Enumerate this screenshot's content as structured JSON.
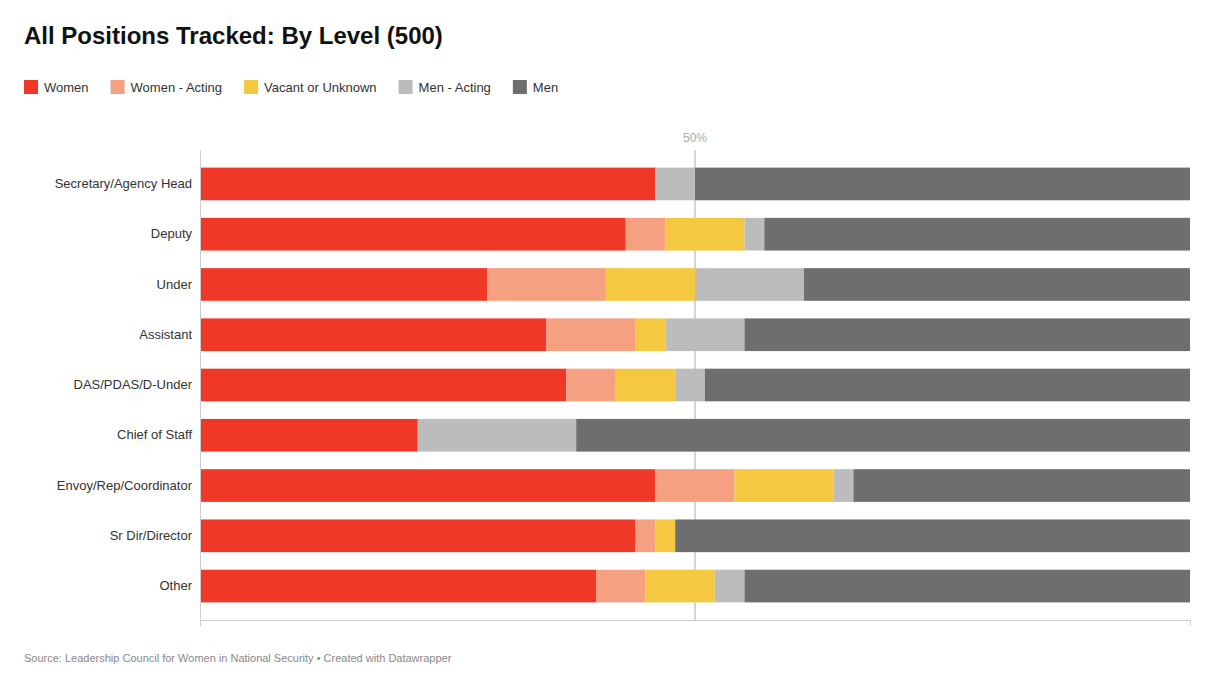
{
  "chart_data": {
    "type": "bar",
    "orientation": "horizontal",
    "stacked": true,
    "title": "All Positions Tracked: By Level (500)",
    "categories": [
      "Secretary/Agency Head",
      "Deputy",
      "Under",
      "Assistant",
      "DAS/PDAS/D-Under",
      "Chief of Staff",
      "Envoy/Rep/Coordinator",
      "Sr Dir/Director",
      "Other"
    ],
    "series": [
      {
        "name": "Women",
        "color": "#f03828",
        "values": [
          46,
          43,
          29,
          35,
          37,
          22,
          46,
          44,
          40
        ]
      },
      {
        "name": "Women - Acting",
        "color": "#f5a080",
        "values": [
          0,
          4,
          12,
          9,
          5,
          0,
          8,
          2,
          5
        ]
      },
      {
        "name": "Vacant or Unknown",
        "color": "#f5c842",
        "values": [
          0,
          8,
          9,
          3,
          6,
          0,
          10,
          2,
          7
        ]
      },
      {
        "name": "Men - Acting",
        "color": "#bcbcbc",
        "values": [
          4,
          2,
          11,
          8,
          3,
          16,
          2,
          0,
          3
        ]
      },
      {
        "name": "Men",
        "color": "#6e6e6e",
        "values": [
          50,
          43,
          39,
          45,
          49,
          62,
          34,
          52,
          45
        ]
      }
    ],
    "xlim": [
      0,
      100
    ],
    "xticks": [],
    "tick_labels": "y",
    "grid": false,
    "legend": "top-left",
    "annotations": [
      {
        "text": "50%",
        "x": 50
      },
      {
        "text": "Source: Leadership Council for Women in National Security • Created with Datawrapper"
      }
    ]
  }
}
